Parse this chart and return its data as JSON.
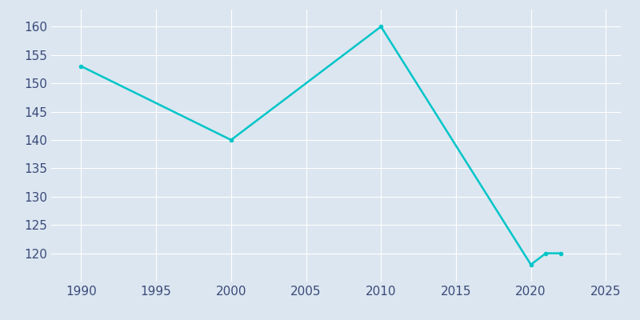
{
  "years": [
    1990,
    2000,
    2010,
    2020,
    2021,
    2022
  ],
  "population": [
    153,
    140,
    160,
    118,
    120,
    120
  ],
  "line_color": "#00C5C8",
  "bg_color": "#dce6f0",
  "plot_bg_color": "#dce6f0",
  "xlim": [
    1988,
    2026
  ],
  "ylim": [
    115,
    163
  ],
  "xticks": [
    1990,
    1995,
    2000,
    2005,
    2010,
    2015,
    2020,
    2025
  ],
  "yticks": [
    120,
    125,
    130,
    135,
    140,
    145,
    150,
    155,
    160
  ],
  "line_width": 1.8,
  "tick_label_color": "#3a4a7a",
  "grid_color": "#ffffff",
  "marker": "o",
  "marker_size": 3
}
